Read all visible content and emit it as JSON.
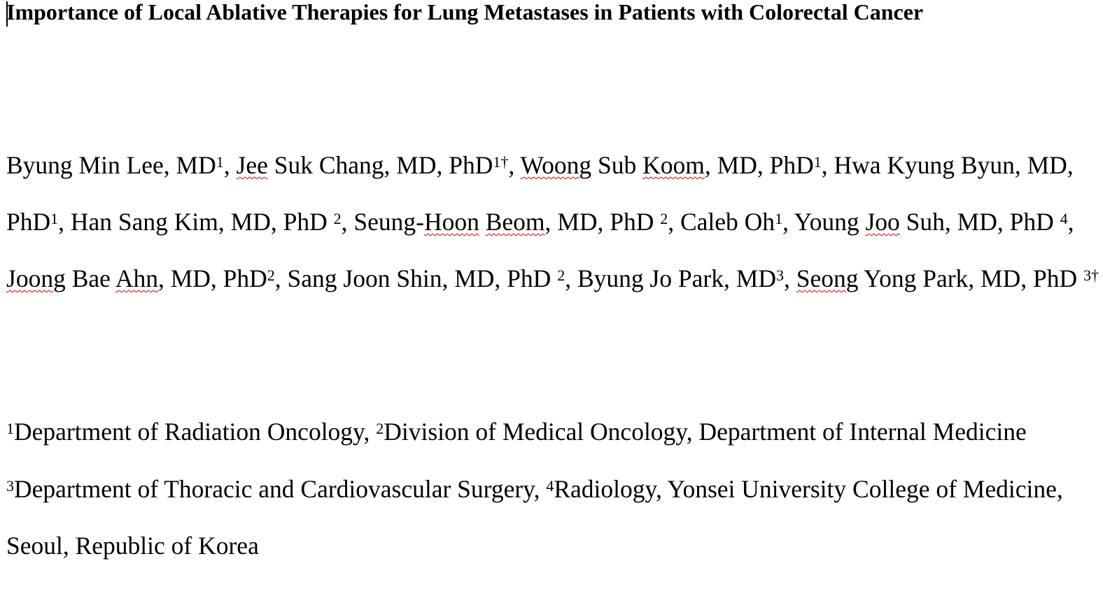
{
  "document": {
    "title": "Importance of Local Ablative Therapies for Lung Metastases in Patients with Colorectal Cancer",
    "authors": {
      "line1": [
        {
          "t": "Byung Min Lee, MD"
        },
        {
          "sup": "1"
        },
        {
          "t": ", "
        },
        {
          "sp": "Jee"
        },
        {
          "t": " Suk Chang, MD, PhD"
        },
        {
          "sup": "1†"
        },
        {
          "t": ", "
        },
        {
          "sp": "Woong"
        },
        {
          "t": " Sub "
        },
        {
          "sp": "Koom"
        },
        {
          "t": ", MD, PhD"
        },
        {
          "sup": "1"
        },
        {
          "t": ", Hwa Kyung Byun, MD,"
        }
      ],
      "line2": [
        {
          "t": "PhD"
        },
        {
          "sup": "1"
        },
        {
          "t": ", Han Sang Kim, MD, PhD "
        },
        {
          "sup": "2"
        },
        {
          "t": ", Seung-"
        },
        {
          "sp": "Hoon"
        },
        {
          "t": " "
        },
        {
          "sp": "Beom"
        },
        {
          "t": ", MD, PhD "
        },
        {
          "sup": "2"
        },
        {
          "t": ", Caleb Oh"
        },
        {
          "sup": "1"
        },
        {
          "t": ", Young "
        },
        {
          "sp": "Joo"
        },
        {
          "t": " Suh, MD, PhD "
        },
        {
          "sup": "4"
        },
        {
          "t": ","
        }
      ],
      "line3": [
        {
          "sp": "Joong"
        },
        {
          "t": " Bae "
        },
        {
          "sp": "Ahn"
        },
        {
          "t": ", MD, PhD"
        },
        {
          "sup": "2"
        },
        {
          "t": ", Sang Joon Shin, MD, PhD "
        },
        {
          "sup": "2"
        },
        {
          "t": ", Byung Jo Park, MD"
        },
        {
          "sup": "3"
        },
        {
          "t": ", "
        },
        {
          "sp": "Seong"
        },
        {
          "t": " Yong Park, MD, PhD "
        },
        {
          "sup": "3†"
        }
      ]
    },
    "affiliations": {
      "line1": [
        {
          "sup": "1"
        },
        {
          "t": "Department of Radiation Oncology, "
        },
        {
          "sup": "2"
        },
        {
          "t": "Division of Medical Oncology, Department of Internal Medicine"
        }
      ],
      "line2": [
        {
          "sup": "3"
        },
        {
          "t": "Department of Thoracic and Cardiovascular Surgery, "
        },
        {
          "sup": "4"
        },
        {
          "t": "Radiology, Yonsei University College of Medicine,"
        }
      ],
      "line3": [
        {
          "t": "Seoul, Republic of Korea"
        }
      ]
    },
    "spellcheck_underline_color": "#d40000"
  }
}
